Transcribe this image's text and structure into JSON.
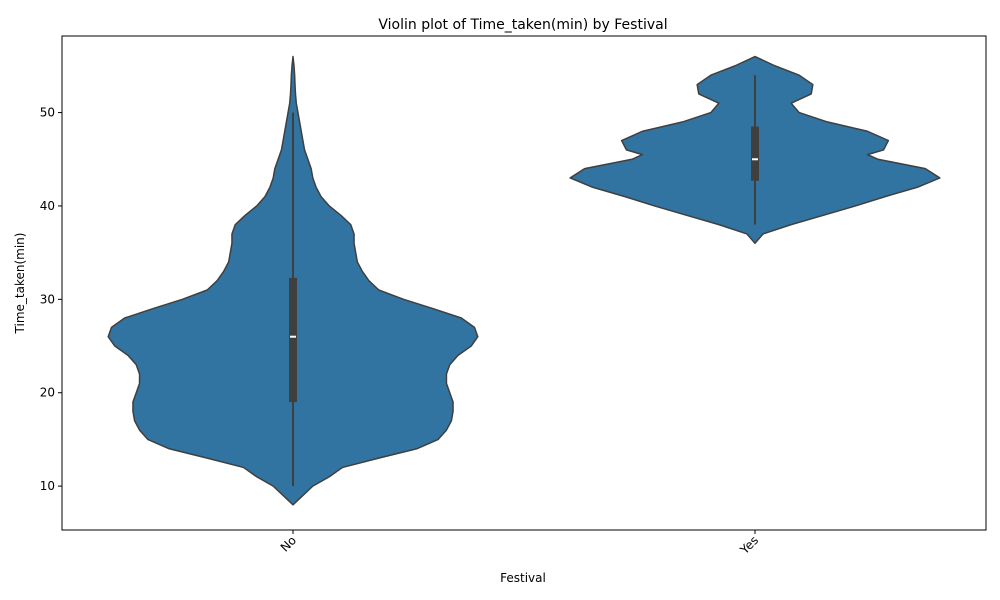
{
  "chart_data": {
    "type": "violin",
    "title": "Violin plot of Time_taken(min) by Festival",
    "xlabel": "Festival",
    "ylabel": "Time_taken(min)",
    "categories": [
      "No",
      "Yes"
    ],
    "ylim": [
      5.3,
      58.2
    ],
    "yticks": [
      10,
      20,
      30,
      40,
      50
    ],
    "grid": false,
    "color": "#3274a1",
    "edge_color": "#3f3f3f",
    "violins": [
      {
        "category": "No",
        "min": 10,
        "q1": 19,
        "median": 26,
        "q3": 32.3,
        "max": 50,
        "density": [
          [
            8.0,
            0.0
          ],
          [
            9.0,
            0.06
          ],
          [
            10.0,
            0.12
          ],
          [
            11.0,
            0.22
          ],
          [
            12.0,
            0.3
          ],
          [
            13.0,
            0.52
          ],
          [
            14.0,
            0.75
          ],
          [
            15.0,
            0.88
          ],
          [
            16.0,
            0.93
          ],
          [
            17.0,
            0.96
          ],
          [
            18.0,
            0.97
          ],
          [
            19.0,
            0.97
          ],
          [
            20.0,
            0.95
          ],
          [
            21.0,
            0.93
          ],
          [
            22.0,
            0.93
          ],
          [
            23.0,
            0.95
          ],
          [
            24.0,
            1.0
          ],
          [
            25.0,
            1.08
          ],
          [
            26.0,
            1.12
          ],
          [
            27.0,
            1.1
          ],
          [
            28.0,
            1.02
          ],
          [
            29.0,
            0.85
          ],
          [
            30.0,
            0.67
          ],
          [
            31.0,
            0.52
          ],
          [
            32.0,
            0.46
          ],
          [
            33.0,
            0.42
          ],
          [
            34.0,
            0.39
          ],
          [
            35.0,
            0.38
          ],
          [
            36.0,
            0.37
          ],
          [
            37.0,
            0.37
          ],
          [
            38.0,
            0.35
          ],
          [
            39.0,
            0.29
          ],
          [
            40.0,
            0.22
          ],
          [
            41.0,
            0.17
          ],
          [
            42.0,
            0.14
          ],
          [
            43.0,
            0.12
          ],
          [
            44.0,
            0.11
          ],
          [
            45.0,
            0.09
          ],
          [
            46.0,
            0.07
          ],
          [
            47.0,
            0.06
          ],
          [
            48.0,
            0.05
          ],
          [
            49.0,
            0.04
          ],
          [
            50.0,
            0.03
          ],
          [
            51.0,
            0.02
          ],
          [
            52.0,
            0.015
          ],
          [
            53.0,
            0.012
          ],
          [
            54.0,
            0.01
          ],
          [
            55.0,
            0.006
          ],
          [
            56.0,
            0.0
          ]
        ]
      },
      {
        "category": "Yes",
        "min": 38,
        "q1": 42.7,
        "median": 45,
        "q3": 48.5,
        "max": 54,
        "density": [
          [
            36.0,
            0.0
          ],
          [
            37.0,
            0.1
          ],
          [
            38.0,
            0.45
          ],
          [
            39.0,
            0.85
          ],
          [
            40.0,
            1.25
          ],
          [
            41.0,
            1.62
          ],
          [
            42.0,
            2.02
          ],
          [
            43.0,
            2.3
          ],
          [
            44.0,
            2.12
          ],
          [
            45.0,
            1.53
          ],
          [
            45.5,
            1.4
          ],
          [
            46.0,
            1.6
          ],
          [
            47.0,
            1.66
          ],
          [
            48.0,
            1.4
          ],
          [
            49.0,
            0.9
          ],
          [
            50.0,
            0.55
          ],
          [
            51.0,
            0.45
          ],
          [
            52.0,
            0.7
          ],
          [
            53.0,
            0.72
          ],
          [
            54.0,
            0.55
          ],
          [
            55.0,
            0.25
          ],
          [
            56.0,
            0.0
          ]
        ]
      }
    ]
  }
}
